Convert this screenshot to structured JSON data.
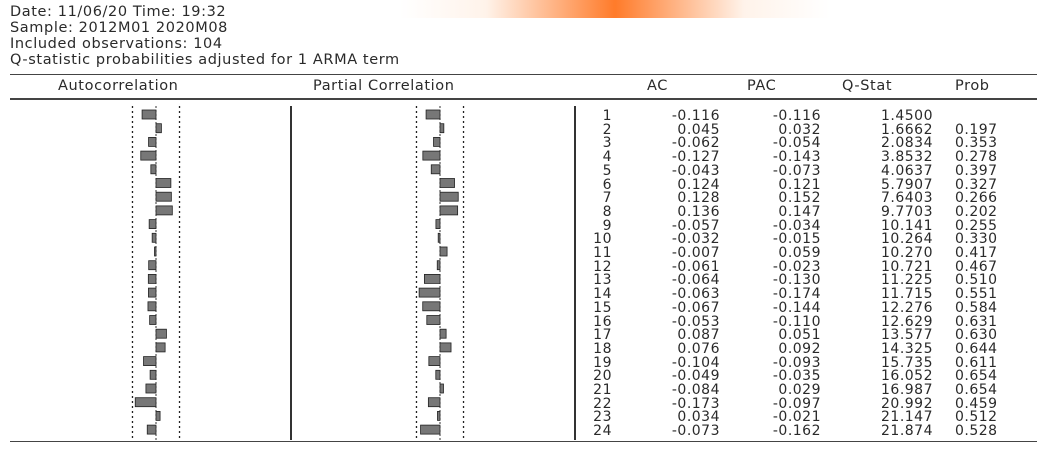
{
  "header": {
    "line1": "Date: 11/06/20   Time: 19:32",
    "line2": "Sample: 2012M01 2020M08",
    "line3": "Included observations: 104",
    "line4": "Q-statistic probabilities adjusted for 1 ARMA term"
  },
  "columns": {
    "autocorrelation": "Autocorrelation",
    "partial": "Partial Correlation",
    "ac": "AC",
    "pac": "PAC",
    "qstat": "Q-Stat",
    "prob": "Prob"
  },
  "rows": [
    {
      "lag": "1",
      "ac": "-0.116",
      "pac": "-0.116",
      "q": "1.4500",
      "prob": ""
    },
    {
      "lag": "2",
      "ac": "0.045",
      "pac": "0.032",
      "q": "1.6662",
      "prob": "0.197"
    },
    {
      "lag": "3",
      "ac": "-0.062",
      "pac": "-0.054",
      "q": "2.0834",
      "prob": "0.353"
    },
    {
      "lag": "4",
      "ac": "-0.127",
      "pac": "-0.143",
      "q": "3.8532",
      "prob": "0.278"
    },
    {
      "lag": "5",
      "ac": "-0.043",
      "pac": "-0.073",
      "q": "4.0637",
      "prob": "0.397"
    },
    {
      "lag": "6",
      "ac": "0.124",
      "pac": "0.121",
      "q": "5.7907",
      "prob": "0.327"
    },
    {
      "lag": "7",
      "ac": "0.128",
      "pac": "0.152",
      "q": "7.6403",
      "prob": "0.266"
    },
    {
      "lag": "8",
      "ac": "0.136",
      "pac": "0.147",
      "q": "9.7703",
      "prob": "0.202"
    },
    {
      "lag": "9",
      "ac": "-0.057",
      "pac": "-0.034",
      "q": "10.141",
      "prob": "0.255"
    },
    {
      "lag": "10",
      "ac": "-0.032",
      "pac": "-0.015",
      "q": "10.264",
      "prob": "0.330"
    },
    {
      "lag": "11",
      "ac": "-0.007",
      "pac": "0.059",
      "q": "10.270",
      "prob": "0.417"
    },
    {
      "lag": "12",
      "ac": "-0.061",
      "pac": "-0.023",
      "q": "10.721",
      "prob": "0.467"
    },
    {
      "lag": "13",
      "ac": "-0.064",
      "pac": "-0.130",
      "q": "11.225",
      "prob": "0.510"
    },
    {
      "lag": "14",
      "ac": "-0.063",
      "pac": "-0.174",
      "q": "11.715",
      "prob": "0.551"
    },
    {
      "lag": "15",
      "ac": "-0.067",
      "pac": "-0.144",
      "q": "12.276",
      "prob": "0.584"
    },
    {
      "lag": "16",
      "ac": "-0.053",
      "pac": "-0.110",
      "q": "12.629",
      "prob": "0.631"
    },
    {
      "lag": "17",
      "ac": "0.087",
      "pac": "0.051",
      "q": "13.577",
      "prob": "0.630"
    },
    {
      "lag": "18",
      "ac": "0.076",
      "pac": "0.092",
      "q": "14.325",
      "prob": "0.644"
    },
    {
      "lag": "19",
      "ac": "-0.104",
      "pac": "-0.093",
      "q": "15.735",
      "prob": "0.611"
    },
    {
      "lag": "20",
      "ac": "-0.049",
      "pac": "-0.035",
      "q": "16.052",
      "prob": "0.654"
    },
    {
      "lag": "21",
      "ac": "-0.084",
      "pac": "0.029",
      "q": "16.987",
      "prob": "0.654"
    },
    {
      "lag": "22",
      "ac": "-0.173",
      "pac": "-0.097",
      "q": "20.992",
      "prob": "0.459"
    },
    {
      "lag": "23",
      "ac": "0.034",
      "pac": "-0.021",
      "q": "21.147",
      "prob": "0.512"
    },
    {
      "lag": "24",
      "ac": "-0.073",
      "pac": "-0.162",
      "q": "21.874",
      "prob": "0.528"
    }
  ],
  "chart_data": {
    "type": "bar",
    "categories": [
      "1",
      "2",
      "3",
      "4",
      "5",
      "6",
      "7",
      "8",
      "9",
      "10",
      "11",
      "12",
      "13",
      "14",
      "15",
      "16",
      "17",
      "18",
      "19",
      "20",
      "21",
      "22",
      "23",
      "24"
    ],
    "series": [
      {
        "name": "AC",
        "values": [
          -0.116,
          0.045,
          -0.062,
          -0.127,
          -0.043,
          0.124,
          0.128,
          0.136,
          -0.057,
          -0.032,
          -0.007,
          -0.061,
          -0.064,
          -0.063,
          -0.067,
          -0.053,
          0.087,
          0.076,
          -0.104,
          -0.049,
          -0.084,
          -0.173,
          0.034,
          -0.073
        ]
      },
      {
        "name": "PAC",
        "values": [
          -0.116,
          0.032,
          -0.054,
          -0.143,
          -0.073,
          0.121,
          0.152,
          0.147,
          -0.034,
          -0.015,
          0.059,
          -0.023,
          -0.13,
          -0.174,
          -0.144,
          -0.11,
          0.051,
          0.092,
          -0.093,
          -0.035,
          0.029,
          -0.097,
          -0.021,
          -0.162
        ]
      }
    ],
    "orientation": "horizontal",
    "confidence_bound": 0.196
  },
  "colors": {
    "bar": "#777777",
    "accent": "#ff7b2a"
  }
}
